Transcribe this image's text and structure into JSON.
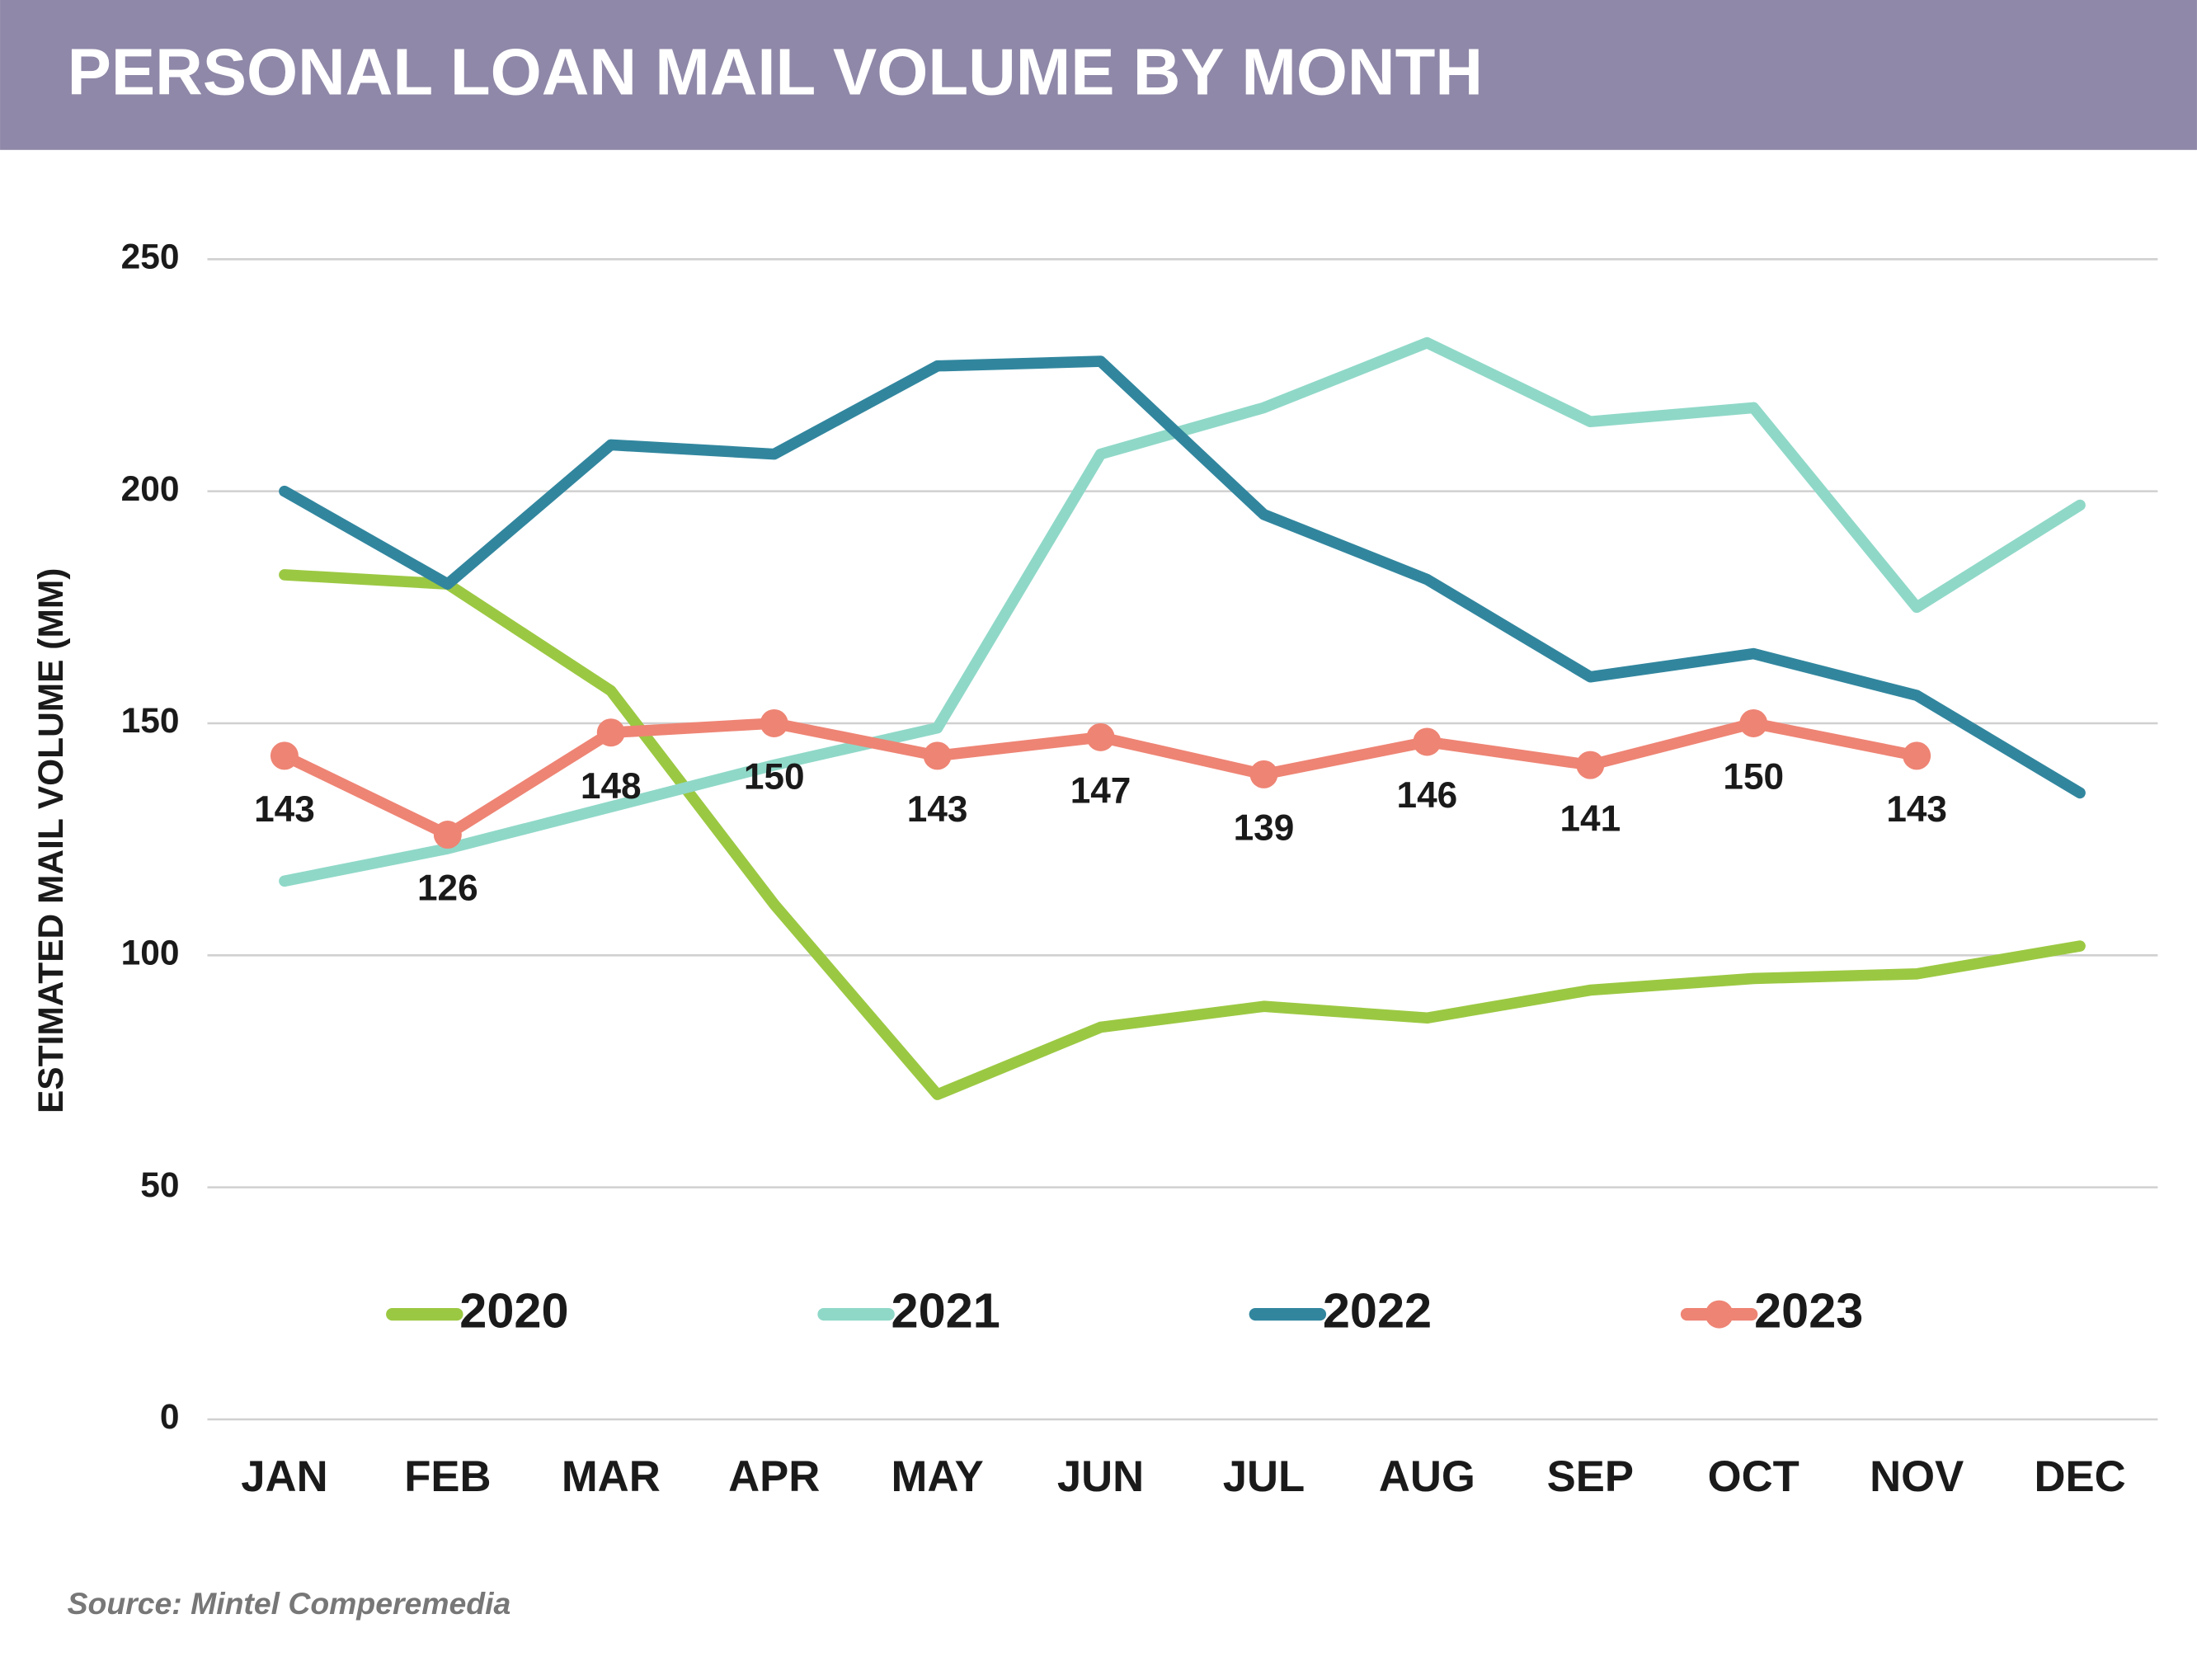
{
  "chart_data": {
    "type": "line",
    "title": "PERSONAL LOAN MAIL VOLUME BY MONTH",
    "ylabel": "ESTIMATED MAIL VOLUME (MM)",
    "source": "Source: Mintel Comperemedia",
    "categories": [
      "JAN",
      "FEB",
      "MAR",
      "APR",
      "MAY",
      "JUN",
      "JUL",
      "AUG",
      "SEP",
      "OCT",
      "NOV",
      "DEC"
    ],
    "series": [
      {
        "name": "2020",
        "color": "#9bc842",
        "values": [
          182,
          180,
          157,
          111,
          70,
          84.5,
          89,
          86.5,
          92.5,
          95,
          96,
          102
        ]
      },
      {
        "name": "2021",
        "color": "#8fd8c8",
        "values": [
          116,
          123,
          132,
          141,
          149,
          208,
          218,
          232,
          215,
          218,
          175,
          197
        ]
      },
      {
        "name": "2022",
        "color": "#31869e",
        "values": [
          200,
          180,
          210,
          208,
          227,
          228,
          195,
          181,
          160,
          165,
          156,
          135
        ]
      },
      {
        "name": "2023",
        "color": "#ee8474",
        "markers": true,
        "data_labels": true,
        "values": [
          143,
          126,
          148,
          150,
          143,
          147,
          139,
          146,
          141,
          150,
          143,
          null
        ]
      }
    ],
    "ylim": [
      0,
      250
    ],
    "yticks": [
      0,
      50,
      100,
      150,
      200,
      250
    ],
    "grid": true,
    "legend": "bottom"
  }
}
